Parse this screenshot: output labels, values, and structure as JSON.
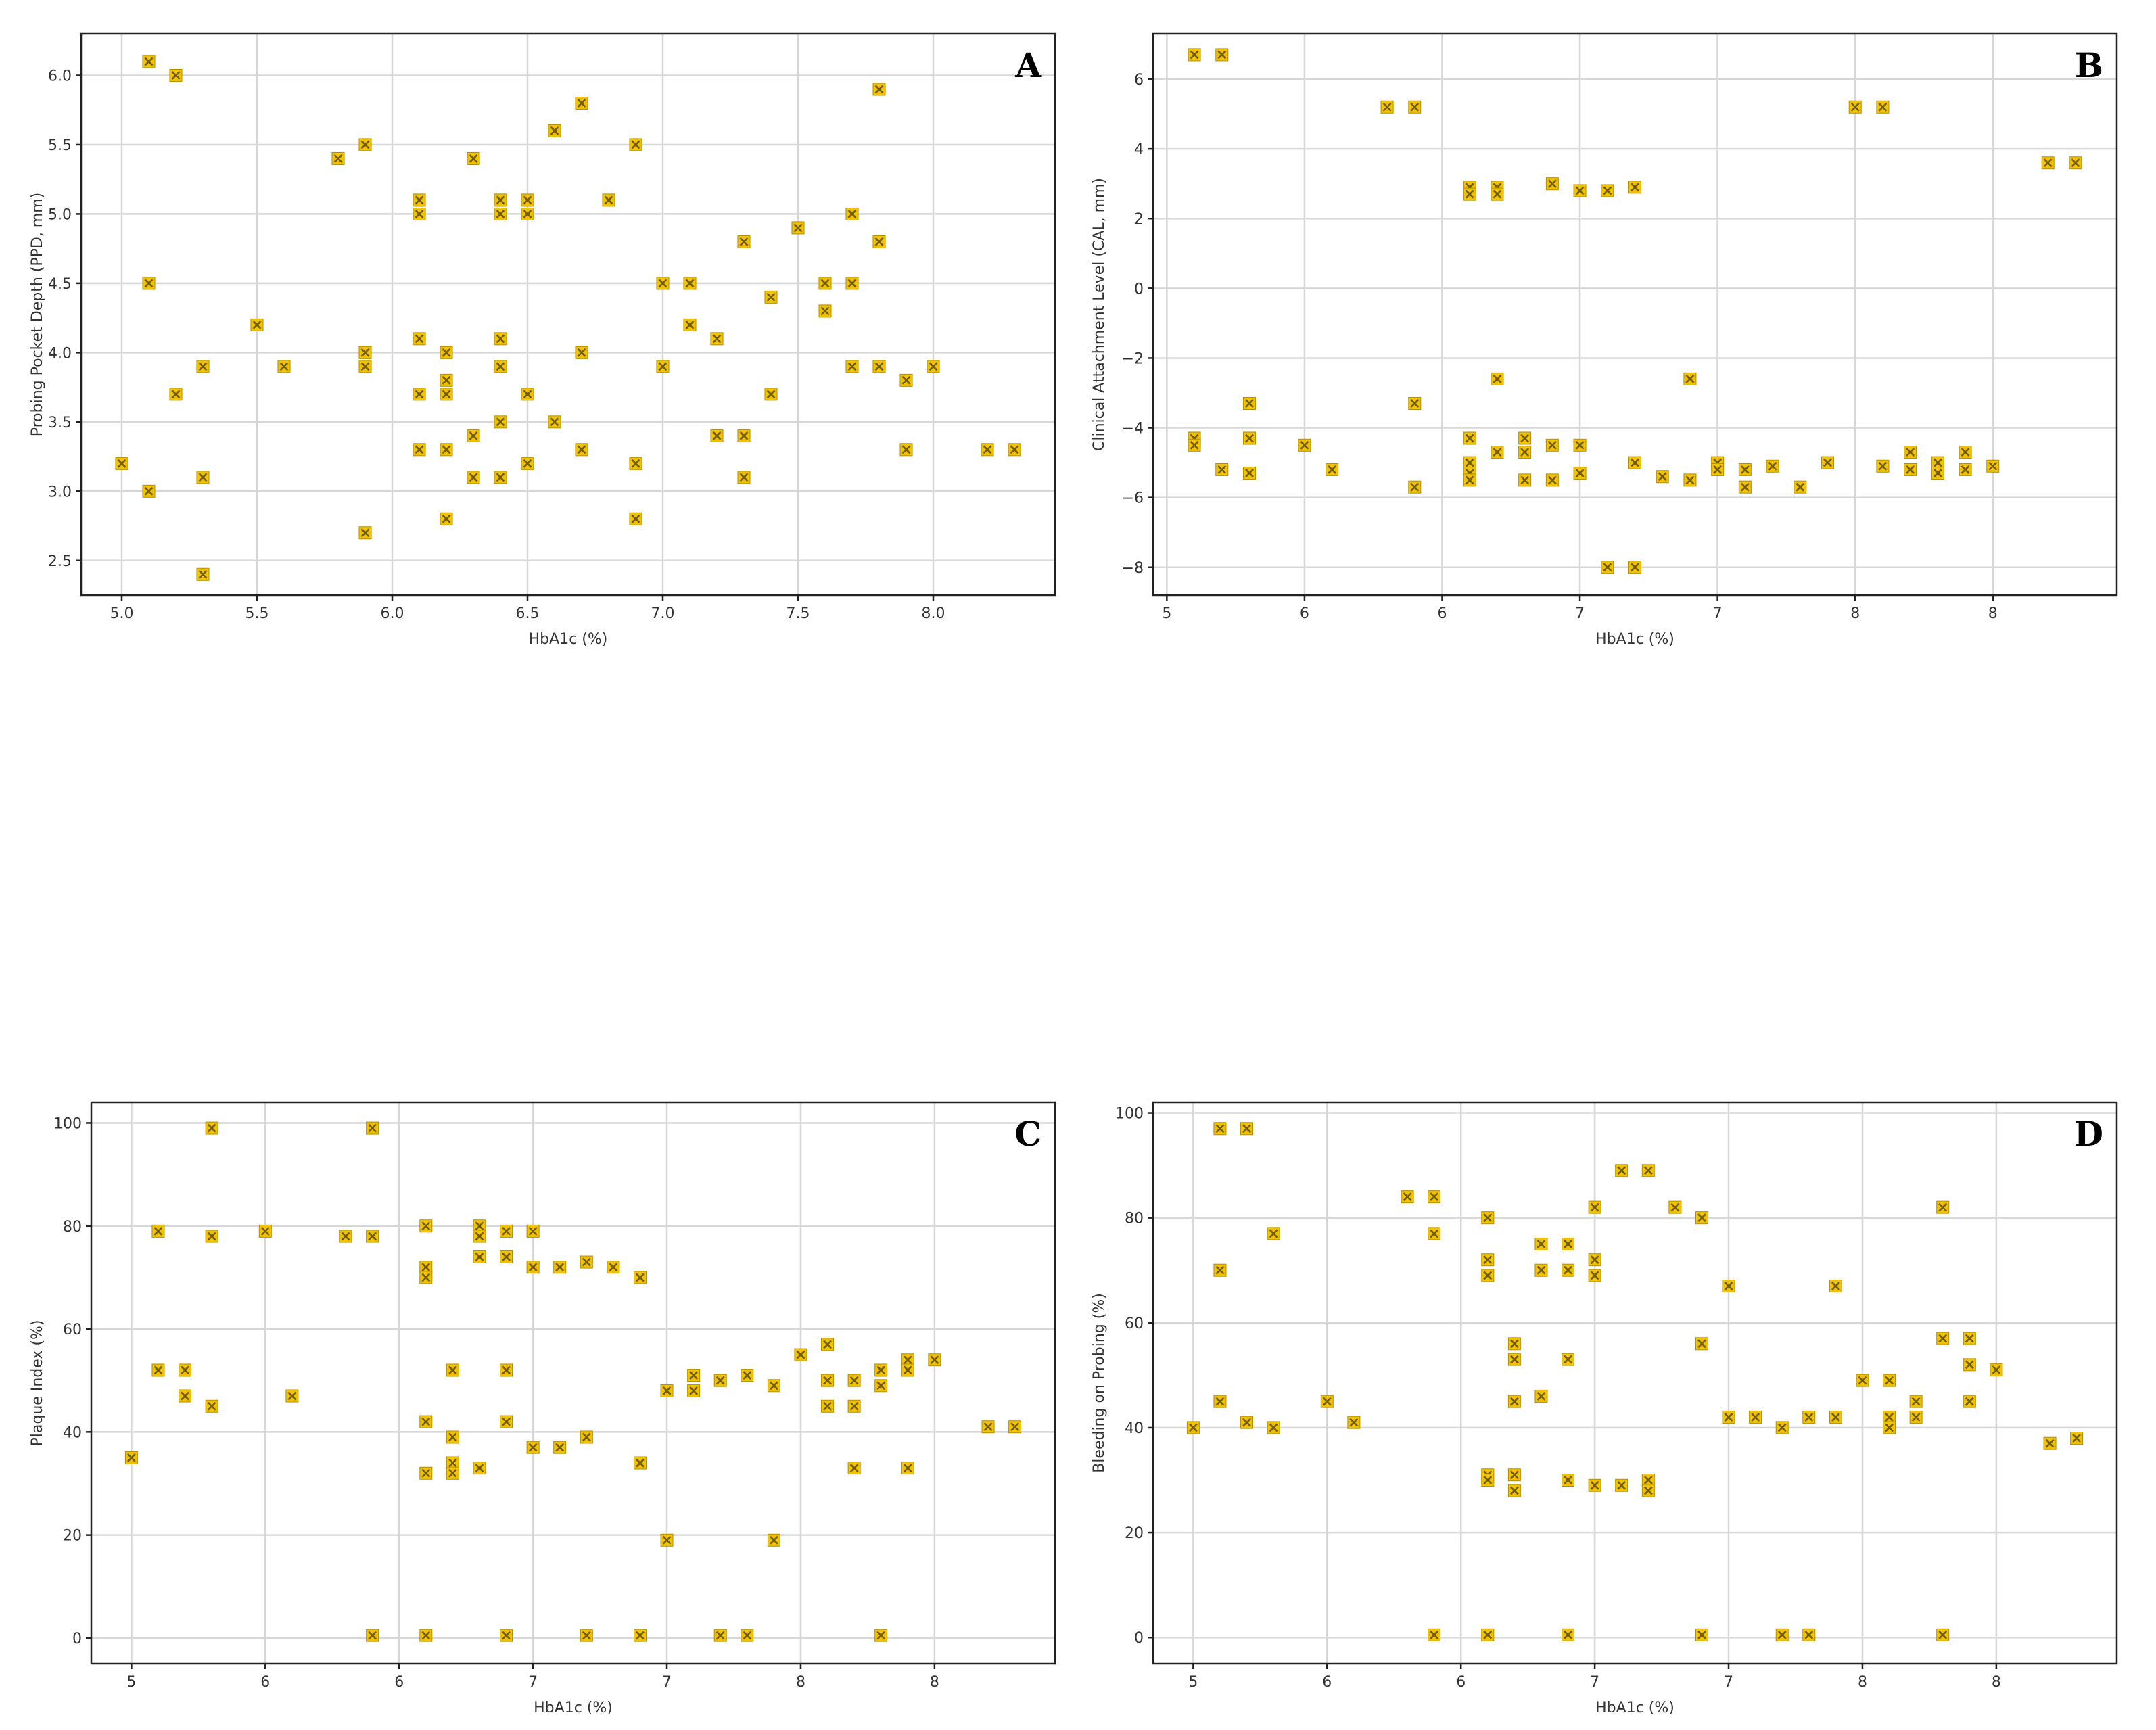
{
  "figure": {
    "marker_color": "#f2c200",
    "marker_cross_color": "#6f5d00",
    "grid_color": "#d7d7d7"
  },
  "chart_data": [
    {
      "id": "A",
      "type": "scatter",
      "panel_label": "A",
      "title": "",
      "xlabel": "HbA1c (%)",
      "ylabel": "Probing Pocket Depth (PPD, mm)",
      "xlim": [
        4.85,
        8.45
      ],
      "ylim": [
        2.25,
        6.3
      ],
      "xticks": [
        5.0,
        5.5,
        6.0,
        6.5,
        7.0,
        7.5,
        8.0
      ],
      "yticks": [
        2.5,
        3.0,
        3.5,
        4.0,
        4.5,
        5.0,
        5.5,
        6.0
      ],
      "tick_decimals": 1,
      "grid": true,
      "x": [
        5.0,
        5.1,
        5.1,
        5.1,
        5.2,
        5.2,
        5.3,
        5.3,
        5.3,
        5.5,
        5.6,
        5.8,
        5.9,
        5.9,
        5.9,
        5.9,
        6.1,
        6.1,
        6.1,
        6.1,
        6.1,
        6.2,
        6.2,
        6.2,
        6.2,
        6.2,
        6.3,
        6.3,
        6.3,
        6.4,
        6.4,
        6.4,
        6.4,
        6.4,
        6.4,
        6.5,
        6.5,
        6.5,
        6.5,
        6.6,
        6.6,
        6.7,
        6.7,
        6.7,
        6.8,
        6.9,
        6.9,
        6.9,
        7.0,
        7.0,
        7.1,
        7.1,
        7.2,
        7.2,
        7.3,
        7.3,
        7.3,
        7.4,
        7.4,
        7.5,
        7.6,
        7.6,
        7.7,
        7.7,
        7.7,
        7.8,
        7.8,
        7.8,
        7.9,
        7.9,
        8.0,
        8.2,
        8.3
      ],
      "y": [
        3.2,
        6.1,
        4.5,
        3.0,
        6.0,
        3.7,
        3.9,
        3.1,
        2.4,
        4.2,
        3.9,
        5.4,
        5.5,
        4.0,
        3.9,
        2.7,
        5.1,
        5.0,
        4.1,
        3.7,
        3.3,
        4.0,
        3.8,
        3.7,
        3.3,
        2.8,
        5.4,
        3.4,
        3.1,
        5.1,
        5.0,
        4.1,
        3.9,
        3.5,
        3.1,
        5.1,
        5.0,
        3.7,
        3.2,
        5.6,
        3.5,
        5.8,
        4.0,
        3.3,
        5.1,
        5.5,
        3.2,
        2.8,
        4.5,
        3.9,
        4.5,
        4.2,
        4.1,
        3.4,
        4.8,
        3.4,
        3.1,
        4.4,
        3.7,
        4.9,
        4.5,
        4.3,
        5.0,
        4.5,
        3.9,
        5.9,
        4.8,
        3.9,
        3.8,
        3.3,
        3.9,
        3.3,
        3.3
      ]
    },
    {
      "id": "B",
      "type": "scatter",
      "panel_label": "B",
      "title": "",
      "xlabel": "HbA1c (%)",
      "ylabel": "Clinical Attachment Level (CAL, mm)",
      "xlim": [
        4.95,
        8.45
      ],
      "ylim": [
        -8.8,
        7.3
      ],
      "xticks": [
        5.0,
        5.5,
        6.0,
        6.5,
        7.0,
        7.5,
        8.0
      ],
      "yticks": [
        -8,
        -6,
        -4,
        -2,
        0,
        2,
        4,
        6
      ],
      "tick_decimals": 0,
      "grid": true,
      "x": [
        5.1,
        5.1,
        5.1,
        5.2,
        5.2,
        5.3,
        5.3,
        5.3,
        5.5,
        5.6,
        5.8,
        5.9,
        5.9,
        5.9,
        6.1,
        6.1,
        6.1,
        6.1,
        6.1,
        6.1,
        6.2,
        6.2,
        6.2,
        6.2,
        6.3,
        6.3,
        6.3,
        6.4,
        6.4,
        6.4,
        6.5,
        6.5,
        6.5,
        6.6,
        6.6,
        6.7,
        6.7,
        6.7,
        6.8,
        6.9,
        6.9,
        7.0,
        7.0,
        7.1,
        7.1,
        7.2,
        7.3,
        7.4,
        7.5,
        7.6,
        7.6,
        7.7,
        7.7,
        7.8,
        7.8,
        7.9,
        7.9,
        8.0,
        8.2,
        8.3
      ],
      "y": [
        6.7,
        -4.3,
        -4.5,
        6.7,
        -5.2,
        -3.3,
        -4.3,
        -5.3,
        -4.5,
        -5.2,
        5.2,
        5.2,
        -3.3,
        -5.7,
        2.9,
        2.7,
        -4.3,
        -5.0,
        -5.3,
        -5.5,
        2.9,
        2.7,
        -2.6,
        -4.7,
        -4.3,
        -4.7,
        -5.5,
        3.0,
        -4.5,
        -5.5,
        2.8,
        -4.5,
        -5.3,
        2.8,
        -8.0,
        2.9,
        -5.0,
        -8.0,
        -5.4,
        -2.6,
        -5.5,
        -5.0,
        -5.2,
        -5.2,
        -5.7,
        -5.1,
        -5.7,
        -5.0,
        5.2,
        5.2,
        -5.1,
        -4.7,
        -5.2,
        -5.0,
        -5.3,
        -4.7,
        -5.2,
        -5.1,
        3.6,
        3.6
      ]
    },
    {
      "id": "C",
      "type": "scatter",
      "panel_label": "C",
      "title": "",
      "xlabel": "HbA1c (%)",
      "ylabel": "Plaque Index (%)",
      "xlim": [
        4.85,
        8.45
      ],
      "ylim": [
        -5,
        104
      ],
      "xticks": [
        5.0,
        5.5,
        6.0,
        6.5,
        7.0,
        7.5,
        8.0
      ],
      "yticks": [
        0,
        20,
        40,
        60,
        80,
        100
      ],
      "tick_decimals": 0,
      "grid": true,
      "x": [
        5.0,
        5.1,
        5.1,
        5.2,
        5.2,
        5.3,
        5.3,
        5.3,
        5.5,
        5.6,
        5.8,
        5.9,
        5.9,
        5.9,
        6.1,
        6.1,
        6.1,
        6.1,
        6.1,
        6.1,
        6.2,
        6.2,
        6.2,
        6.2,
        6.3,
        6.3,
        6.3,
        6.3,
        6.4,
        6.4,
        6.4,
        6.4,
        6.4,
        6.5,
        6.5,
        6.5,
        6.6,
        6.6,
        6.7,
        6.7,
        6.7,
        6.8,
        6.9,
        6.9,
        6.9,
        7.0,
        7.0,
        7.1,
        7.1,
        7.2,
        7.2,
        7.3,
        7.3,
        7.4,
        7.4,
        7.5,
        7.6,
        7.6,
        7.6,
        7.7,
        7.7,
        7.7,
        7.8,
        7.8,
        7.8,
        7.9,
        7.9,
        7.9,
        8.0,
        8.2,
        8.3
      ],
      "y": [
        35,
        79,
        52,
        52,
        47,
        99,
        78,
        45,
        79,
        47,
        78,
        99,
        78,
        0.5,
        80,
        72,
        70,
        42,
        32,
        0.5,
        52,
        39,
        34,
        32,
        80,
        78,
        74,
        33,
        79,
        74,
        52,
        42,
        0.5,
        79,
        72,
        37,
        72,
        37,
        73,
        39,
        0.5,
        72,
        70,
        34,
        0.5,
        48,
        19,
        51,
        48,
        50,
        0.5,
        51,
        0.5,
        49,
        19,
        55,
        57,
        50,
        45,
        50,
        45,
        33,
        52,
        49,
        0.5,
        54,
        52,
        33,
        54,
        41,
        41
      ]
    },
    {
      "id": "D",
      "type": "scatter",
      "panel_label": "D",
      "title": "",
      "xlabel": "HbA1c (%)",
      "ylabel": "Bleeding on Probing (%)",
      "xlim": [
        4.85,
        8.45
      ],
      "ylim": [
        -5,
        102
      ],
      "xticks": [
        5.0,
        5.5,
        6.0,
        6.5,
        7.0,
        7.5,
        8.0
      ],
      "yticks": [
        0,
        20,
        40,
        60,
        80,
        100
      ],
      "tick_decimals": 0,
      "grid": true,
      "x": [
        5.0,
        5.1,
        5.1,
        5.1,
        5.2,
        5.2,
        5.3,
        5.3,
        5.5,
        5.6,
        5.8,
        5.9,
        5.9,
        5.9,
        6.1,
        6.1,
        6.1,
        6.1,
        6.1,
        6.1,
        6.2,
        6.2,
        6.2,
        6.2,
        6.2,
        6.3,
        6.3,
        6.3,
        6.4,
        6.4,
        6.4,
        6.4,
        6.4,
        6.5,
        6.5,
        6.5,
        6.5,
        6.6,
        6.6,
        6.7,
        6.7,
        6.7,
        6.8,
        6.9,
        6.9,
        6.9,
        7.0,
        7.0,
        7.1,
        7.2,
        7.2,
        7.3,
        7.3,
        7.4,
        7.4,
        7.5,
        7.6,
        7.6,
        7.6,
        7.7,
        7.7,
        7.8,
        7.8,
        7.8,
        7.9,
        7.9,
        7.9,
        8.0,
        8.2,
        8.3
      ],
      "y": [
        40,
        97,
        70,
        45,
        97,
        41,
        77,
        40,
        45,
        41,
        84,
        84,
        77,
        0.5,
        80,
        72,
        69,
        31,
        30,
        0.5,
        56,
        53,
        45,
        31,
        28,
        75,
        70,
        46,
        75,
        70,
        53,
        30,
        0.5,
        82,
        72,
        69,
        29,
        89,
        29,
        89,
        30,
        28,
        82,
        80,
        56,
        0.5,
        67,
        42,
        42,
        40,
        0.5,
        42,
        0.5,
        67,
        42,
        49,
        49,
        42,
        40,
        45,
        42,
        82,
        57,
        0.5,
        57,
        52,
        45,
        51,
        37,
        38
      ]
    }
  ]
}
